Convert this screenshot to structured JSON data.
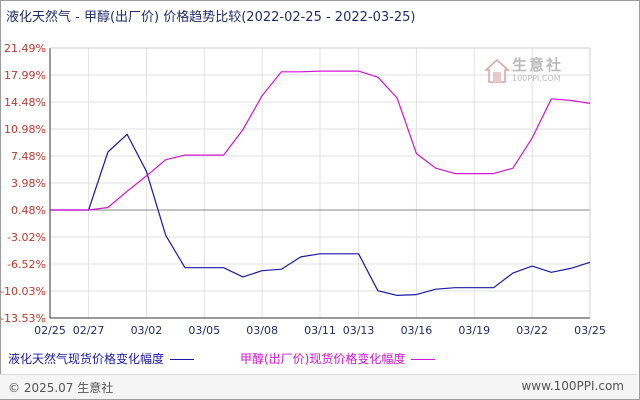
{
  "header": {
    "title": "液化天然气 - 甲醇(出厂价) 价格趋势比较(2022-02-25 - 2022-03-25)"
  },
  "watermark": {
    "name": "生意社",
    "url": "100PPI.COM",
    "icon": "house-logo-icon"
  },
  "footer": {
    "copyright": "© 2025.07 生意社",
    "site": "www.100PPI.com"
  },
  "chart_data": {
    "type": "line",
    "x": [
      "02/25",
      "02/26",
      "02/27",
      "02/28",
      "03/01",
      "03/02",
      "03/03",
      "03/04",
      "03/05",
      "03/06",
      "03/07",
      "03/08",
      "03/09",
      "03/10",
      "03/11",
      "03/12",
      "03/13",
      "03/14",
      "03/15",
      "03/16",
      "03/17",
      "03/18",
      "03/19",
      "03/20",
      "03/21",
      "03/22",
      "03/23",
      "03/24",
      "03/25"
    ],
    "x_ticks": [
      "02/25",
      "02/27",
      "03/02",
      "03/05",
      "03/08",
      "03/11",
      "03/13",
      "03/16",
      "03/19",
      "03/22",
      "03/25"
    ],
    "y_ticks": [
      "21.49%",
      "17.99%",
      "14.48%",
      "10.98%",
      "7.48%",
      "3.98%",
      "0.48%",
      "-3.02%",
      "-6.52%",
      "-10.03%",
      "-13.53%"
    ],
    "ylim": [
      -13.53,
      21.49
    ],
    "baseline": 0.48,
    "grid": true,
    "legend_position": "bottom",
    "series": [
      {
        "name": "液化天然气现货价格变化幅度",
        "color": "#1a1aa6",
        "values": [
          0.48,
          0.48,
          0.48,
          8.0,
          10.3,
          5.5,
          -2.8,
          -7.0,
          -7.0,
          -7.0,
          -8.2,
          -7.4,
          -7.2,
          -5.6,
          -5.2,
          -5.2,
          -5.2,
          -10.0,
          -10.6,
          -10.5,
          -9.8,
          -9.6,
          -9.6,
          -9.6,
          -7.7,
          -6.8,
          -7.6,
          -7.1,
          -6.3
        ]
      },
      {
        "name": "甲醇(出厂价)现货价格变化幅度",
        "color": "#d216d2",
        "values": [
          0.48,
          0.48,
          0.48,
          0.8,
          2.9,
          4.9,
          7.0,
          7.6,
          7.6,
          7.6,
          10.9,
          15.3,
          18.4,
          18.4,
          18.5,
          18.5,
          18.5,
          17.7,
          15.0,
          7.8,
          5.9,
          5.2,
          5.2,
          5.2,
          5.9,
          9.8,
          14.9,
          14.7,
          14.3
        ]
      }
    ]
  }
}
